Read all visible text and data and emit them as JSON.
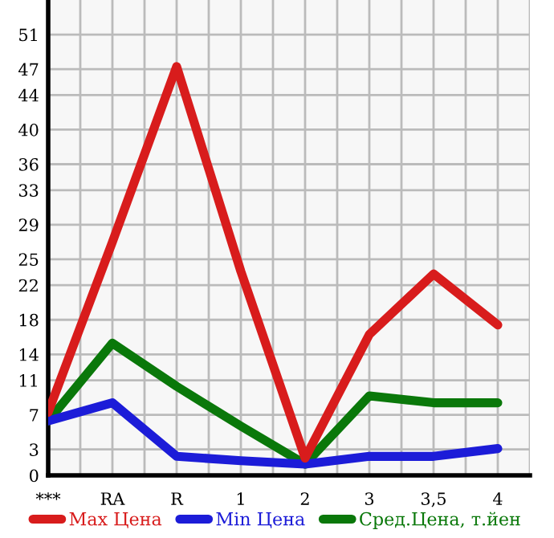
{
  "chart_data": {
    "type": "line",
    "categories": [
      "***",
      "RA",
      "R",
      "1",
      "2",
      "3",
      "3,5",
      "4"
    ],
    "series": [
      {
        "name": "Max Цена",
        "color": "#d81c1c",
        "values": [
          7.3,
          27,
          47.3,
          23.6,
          2.0,
          16.3,
          23.3,
          17.4
        ]
      },
      {
        "name": "Min Цена",
        "color": "#1c1cd8",
        "values": [
          6.3,
          8.4,
          2.2,
          1.7,
          1.3,
          2.2,
          2.2,
          3.1
        ]
      },
      {
        "name": "Сред.Цена, т.йен",
        "color": "#0a780a",
        "values": [
          6.3,
          15.3,
          10.3,
          5.7,
          1.3,
          9.2,
          8.4,
          8.4
        ]
      }
    ],
    "ylim": [
      0,
      55
    ],
    "yticks": [
      0,
      3,
      7,
      11,
      14,
      18,
      22,
      25,
      29,
      33,
      36,
      40,
      44,
      47,
      51
    ],
    "grid": true,
    "legend": "bottom",
    "marker": "none",
    "line_style": "solid"
  }
}
